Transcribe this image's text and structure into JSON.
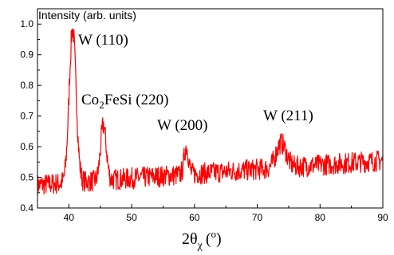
{
  "chart_data": {
    "type": "line",
    "xlim": [
      35,
      90
    ],
    "ylim": [
      0.4,
      1.05
    ],
    "x_ticks": [
      "40",
      "50",
      "60",
      "70",
      "80",
      "90"
    ],
    "x_tick_values": [
      40,
      50,
      60,
      70,
      80,
      90
    ],
    "y_ticks": [
      "0.4",
      "0.5",
      "0.6",
      "0.7",
      "0.8",
      "0.9",
      "1.0"
    ],
    "y_tick_values": [
      0.4,
      0.5,
      0.6,
      0.7,
      0.8,
      0.9,
      1.0
    ],
    "ylabel": "Intensity (arb. units)",
    "xlabel": {
      "main": "2θ",
      "sub": "χ",
      "paren": "(",
      "sup": "o",
      "close": ")"
    },
    "line_color": "#ff0000",
    "grid": false,
    "annotations": [
      {
        "label": "W (110)",
        "x": 40.5,
        "y": 1.0
      },
      {
        "parts": [
          "Co",
          "2",
          "FeSi (220)"
        ],
        "x": 45.5,
        "y": 0.68
      },
      {
        "label": "W (200)",
        "x": 58.5,
        "y": 0.63
      },
      {
        "label": "W (211)",
        "x": 73.8,
        "y": 0.67
      }
    ],
    "peaks": [
      {
        "x": 40.6,
        "height": 0.5,
        "width": 0.55
      },
      {
        "x": 45.5,
        "height": 0.18,
        "width": 0.45
      },
      {
        "x": 58.7,
        "height": 0.09,
        "width": 0.35
      },
      {
        "x": 73.8,
        "height": 0.08,
        "width": 0.8
      }
    ],
    "baseline": {
      "start": 0.475,
      "end": 0.555
    },
    "noise_amplitude": 0.035
  }
}
